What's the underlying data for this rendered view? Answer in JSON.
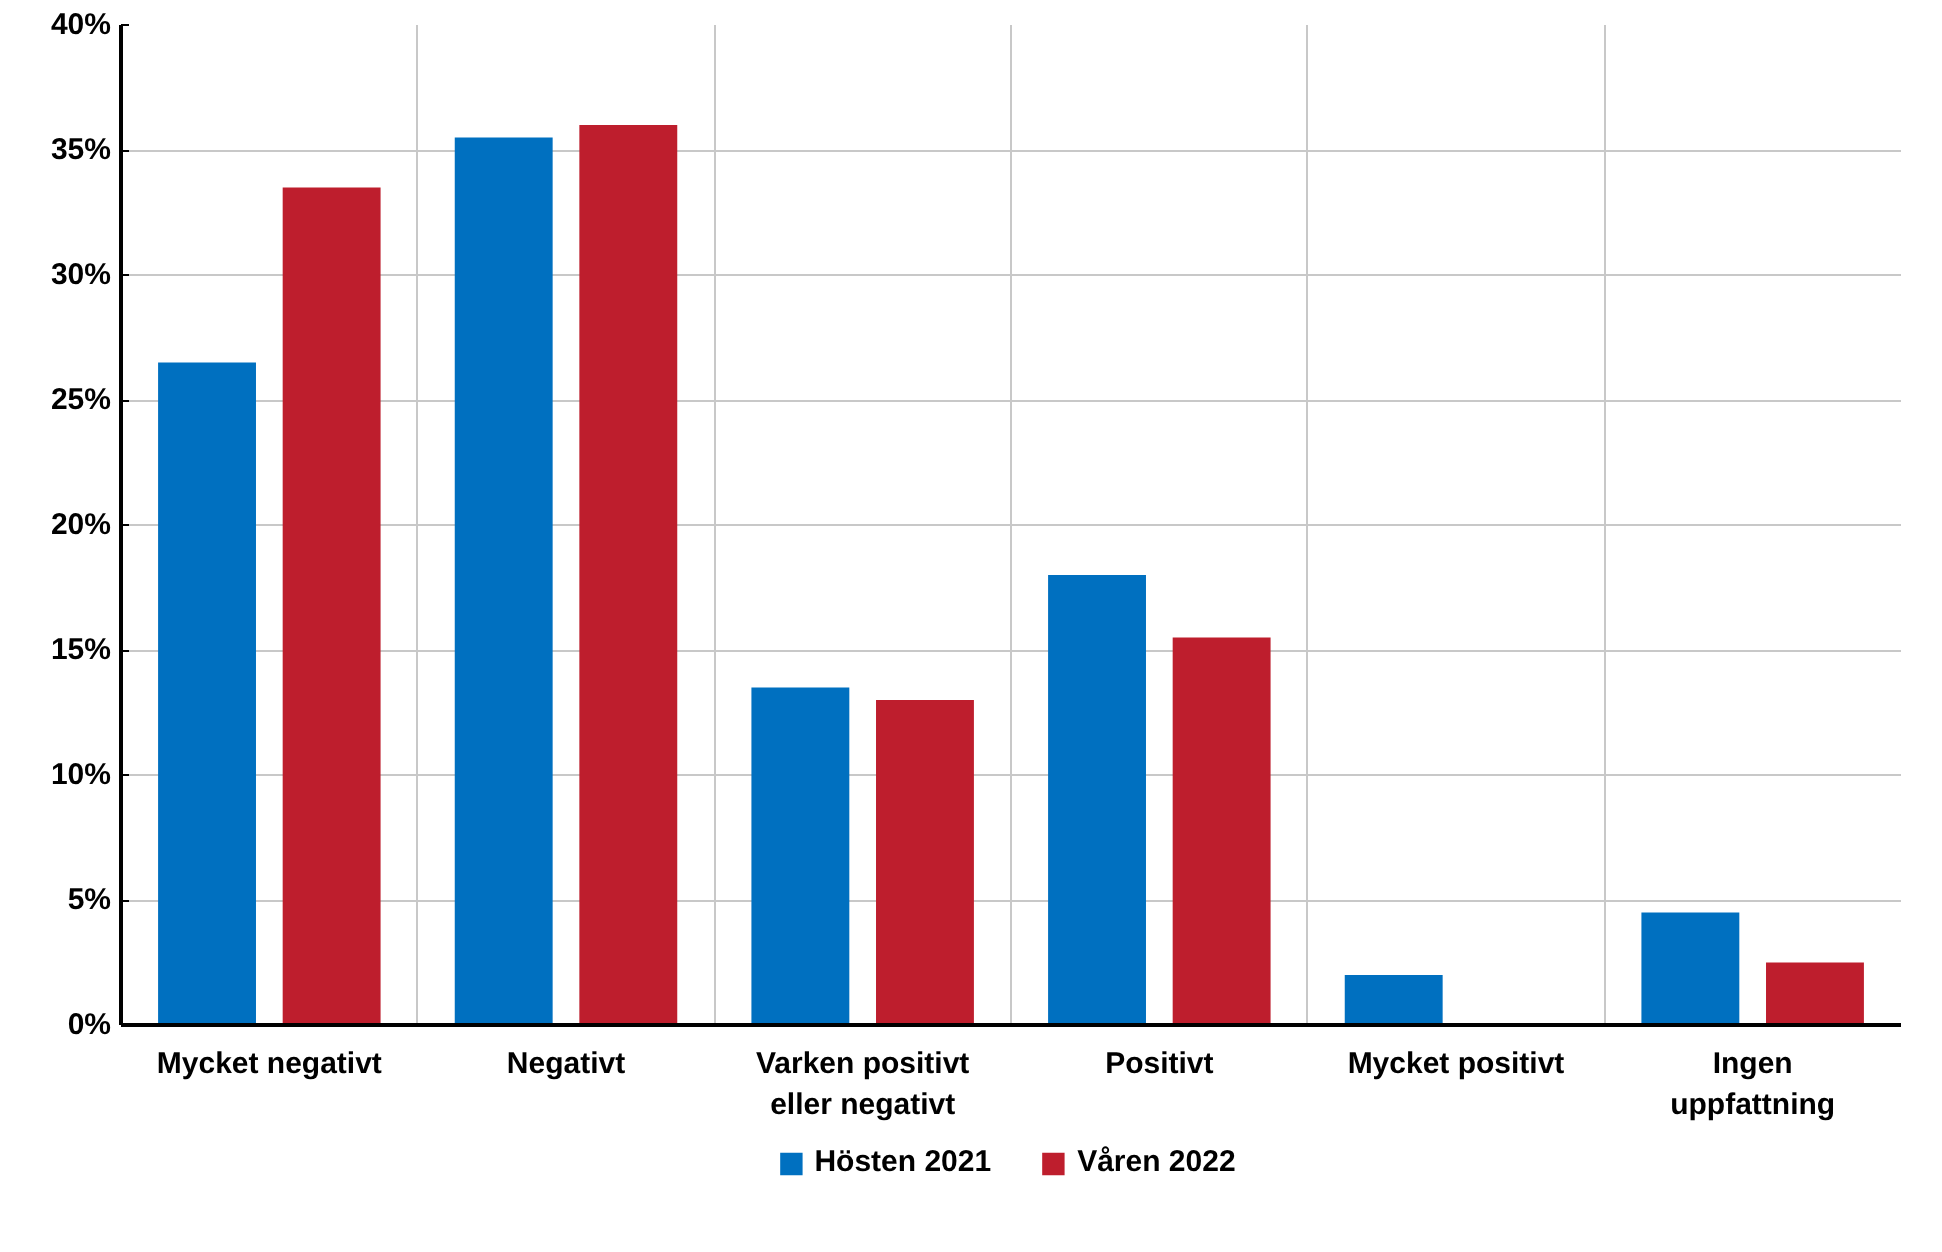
{
  "chart_data": {
    "type": "bar",
    "categories": [
      "Mycket negativt",
      "Negativt",
      "Varken positivt eller negativt",
      "Positivt",
      "Mycket positivt",
      "Ingen uppfattning"
    ],
    "series": [
      {
        "name": "Hösten 2021",
        "color": "#0070c0",
        "values": [
          26.5,
          35.5,
          13.5,
          18,
          2,
          4.5
        ]
      },
      {
        "name": "Våren 2022",
        "color": "#be1e2d",
        "values": [
          33.5,
          36,
          13,
          15.5,
          0,
          2.5
        ]
      }
    ],
    "ylim": [
      0,
      40
    ],
    "yticks": [
      {
        "value": 0,
        "label": "0%"
      },
      {
        "value": 5,
        "label": "5%"
      },
      {
        "value": 10,
        "label": "10%"
      },
      {
        "value": 15,
        "label": "15%"
      },
      {
        "value": 20,
        "label": "20%"
      },
      {
        "value": 25,
        "label": "25%"
      },
      {
        "value": 30,
        "label": "30%"
      },
      {
        "value": 35,
        "label": "35%"
      },
      {
        "value": 40,
        "label": "40%"
      }
    ],
    "grid": true,
    "legend": "bottom"
  }
}
